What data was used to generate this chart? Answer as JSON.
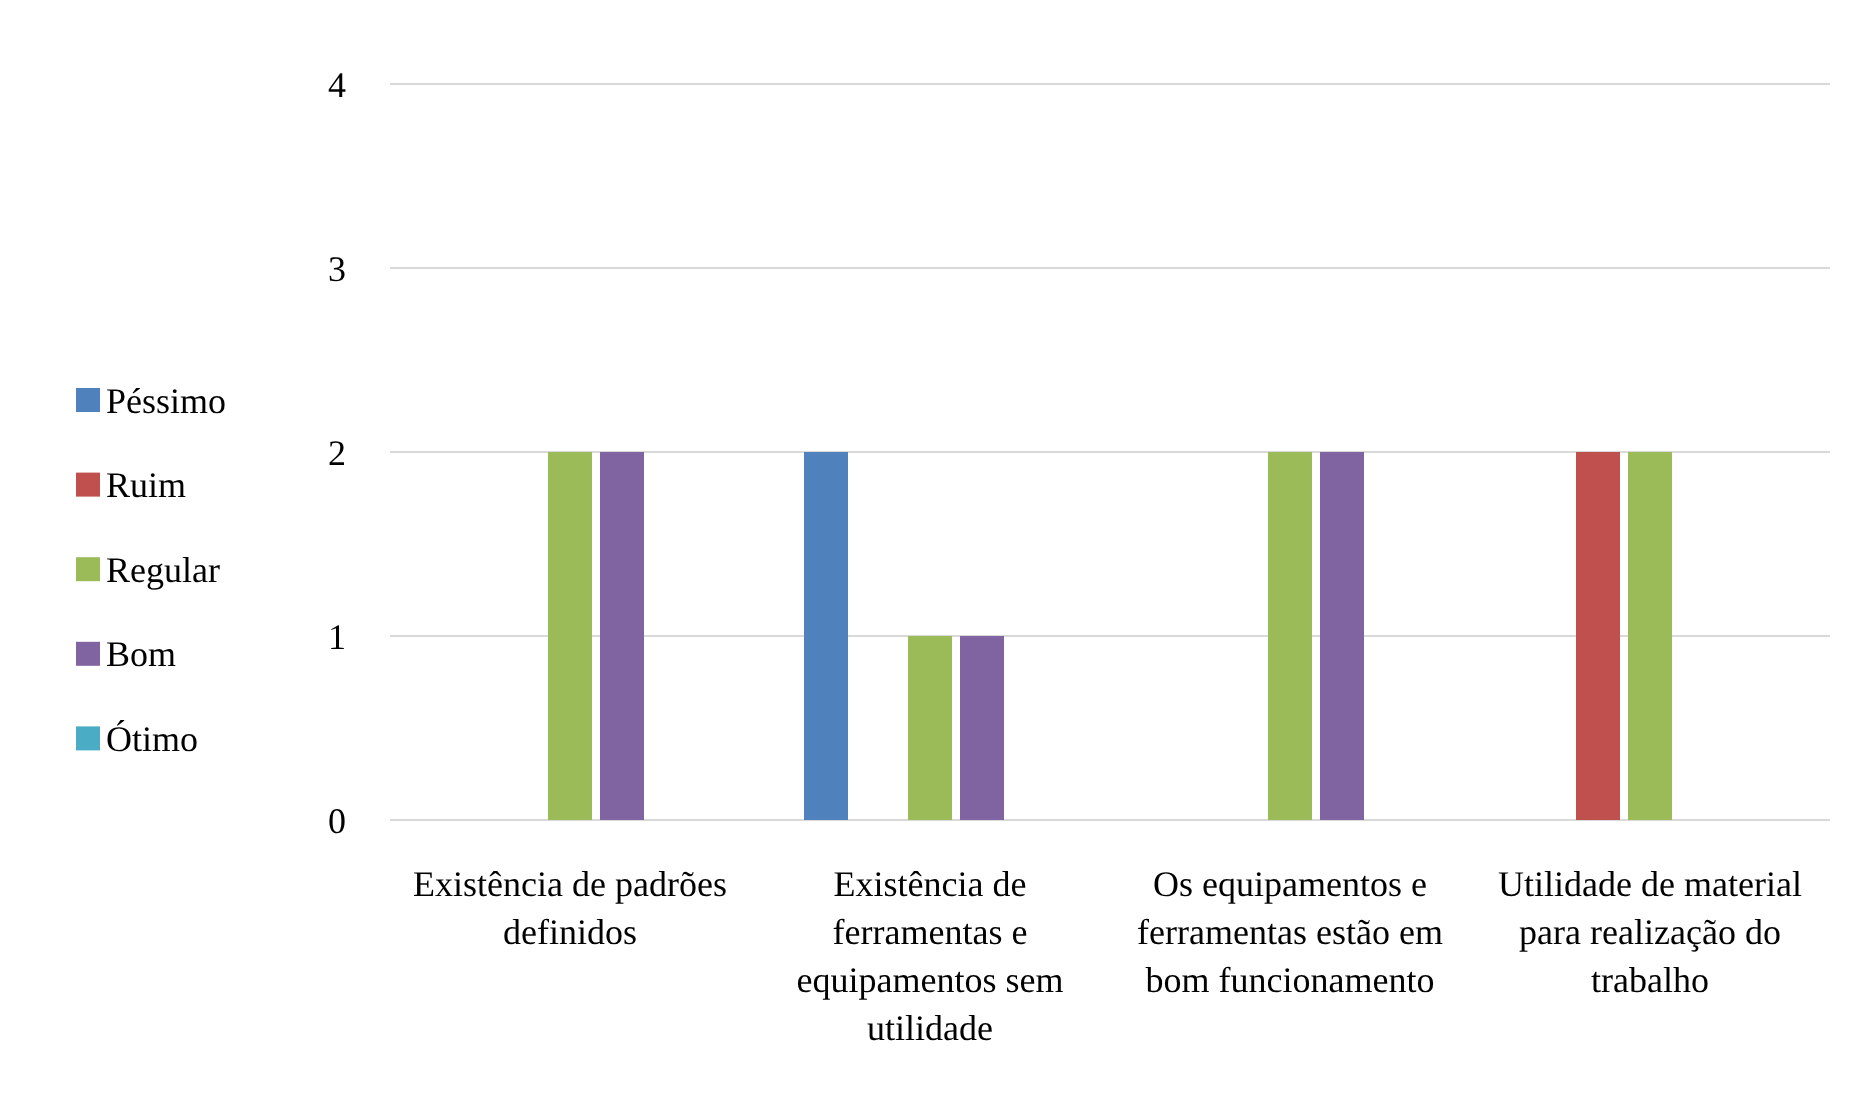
{
  "chart_data": {
    "type": "bar",
    "categories": [
      "Existência de padrões definidos",
      "Existência de ferramentas e equipamentos sem utilidade",
      "Os equipamentos e ferramentas estão em bom funcionamento",
      "Utilidade de material para realização do trabalho"
    ],
    "series": [
      {
        "name": "Péssimo",
        "color": "#4f81bd",
        "values": [
          0,
          2,
          0,
          0
        ]
      },
      {
        "name": "Ruim",
        "color": "#c0504d",
        "values": [
          0,
          0,
          0,
          2
        ]
      },
      {
        "name": "Regular",
        "color": "#9bbb59",
        "values": [
          2,
          1,
          2,
          2
        ]
      },
      {
        "name": "Bom",
        "color": "#8064a2",
        "values": [
          2,
          1,
          2,
          0
        ]
      },
      {
        "name": "Ótimo",
        "color": "#4bacc6",
        "values": [
          0,
          0,
          0,
          0
        ]
      }
    ],
    "ylim": [
      0,
      4
    ],
    "yticks": [
      0,
      1,
      2,
      3,
      4
    ],
    "grid": "y",
    "legend": "left"
  }
}
